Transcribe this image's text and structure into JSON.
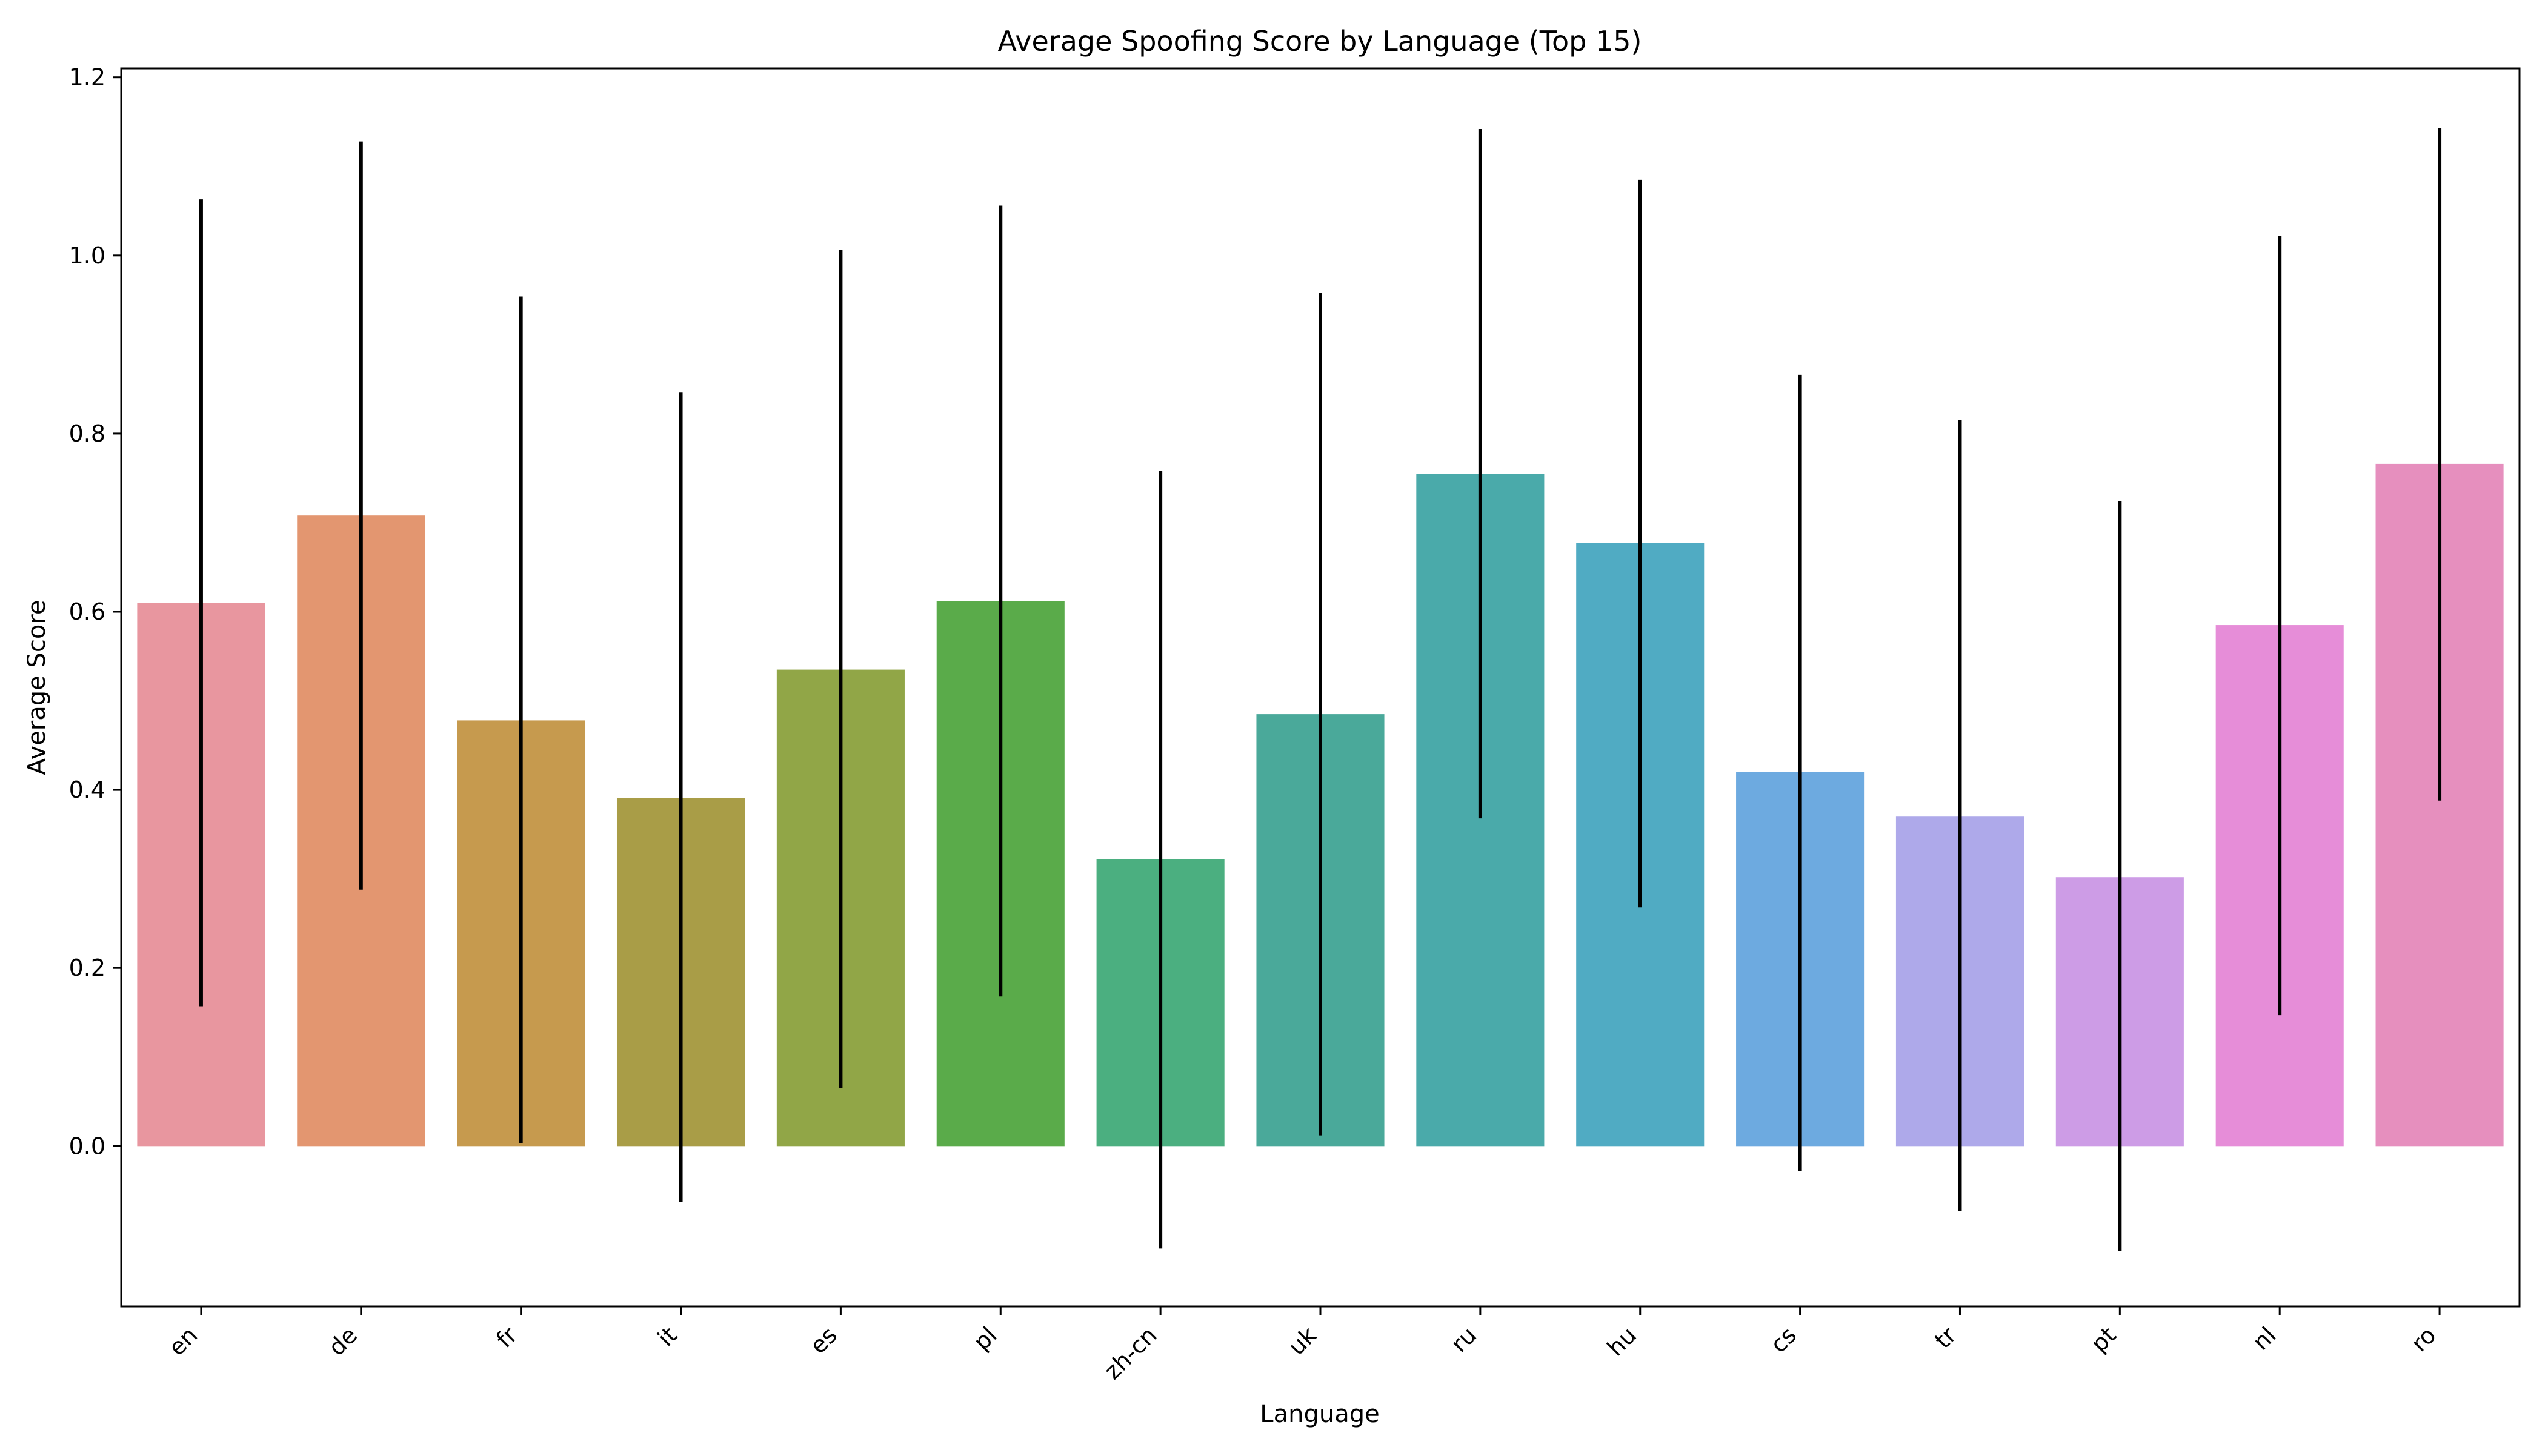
{
  "chart_data": {
    "type": "bar",
    "title": "Average Spoofing Score by Language (Top 15)",
    "xlabel": "Language",
    "ylabel": "Average Score",
    "ylim": [
      -0.18,
      1.21
    ],
    "yticks": [
      0.0,
      0.2,
      0.4,
      0.6,
      0.8,
      1.0,
      1.2
    ],
    "ytick_labels": [
      "0.0",
      "0.2",
      "0.4",
      "0.6",
      "0.8",
      "1.0",
      "1.2"
    ],
    "grid": false,
    "categories": [
      "en",
      "de",
      "fr",
      "it",
      "es",
      "pl",
      "zh-cn",
      "uk",
      "ru",
      "hu",
      "cs",
      "tr",
      "pt",
      "nl",
      "ro"
    ],
    "values": [
      0.61,
      0.708,
      0.478,
      0.391,
      0.535,
      0.612,
      0.322,
      0.485,
      0.755,
      0.677,
      0.42,
      0.37,
      0.302,
      0.585,
      0.766
    ],
    "error_low": [
      0.157,
      0.288,
      0.003,
      -0.063,
      0.065,
      0.168,
      -0.115,
      0.012,
      0.368,
      0.268,
      -0.028,
      -0.073,
      -0.118,
      0.147,
      0.388
    ],
    "error_high": [
      1.063,
      1.128,
      0.954,
      0.846,
      1.006,
      1.056,
      0.758,
      0.958,
      1.142,
      1.085,
      0.866,
      0.815,
      0.724,
      1.022,
      1.143
    ],
    "colors": [
      "#e8969f",
      "#e39670",
      "#c69a4e",
      "#a99d47",
      "#91a647",
      "#5aab4a",
      "#4baf80",
      "#4aa99a",
      "#4aaaaa",
      "#50abc3",
      "#6daae0",
      "#aea9ea",
      "#cd9ce6",
      "#e68dd8",
      "#e68fbe"
    ],
    "error_color": "#000000"
  }
}
